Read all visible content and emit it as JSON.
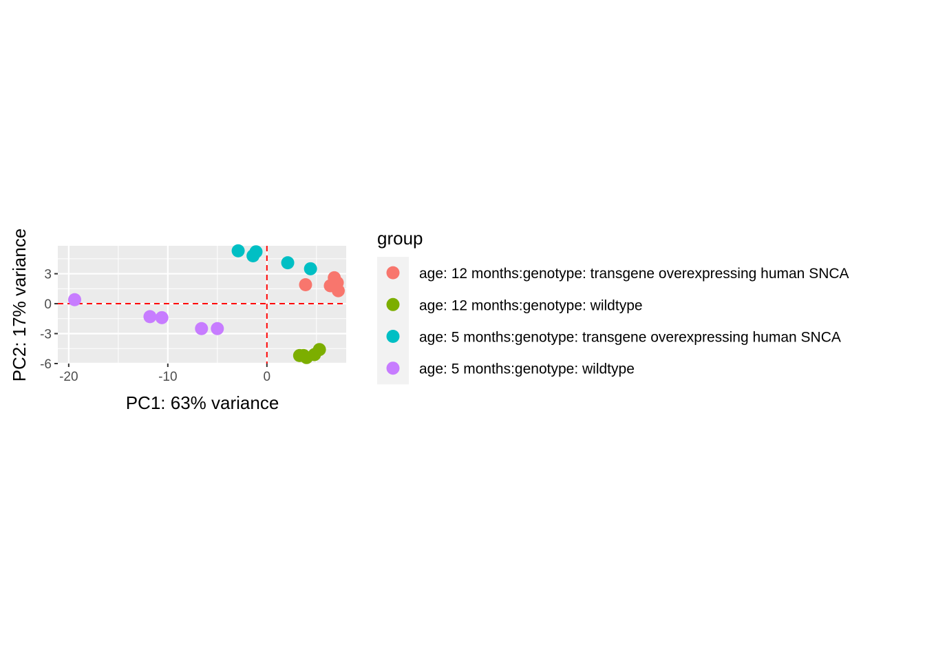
{
  "chart_data": {
    "type": "scatter",
    "xlabel": "PC1: 63% variance",
    "ylabel": "PC2: 17% variance",
    "xlim": [
      -21.1,
      8.0
    ],
    "ylim": [
      -6.0,
      5.8
    ],
    "x_ticks": [
      -20,
      -10,
      0
    ],
    "x_tick_labels": [
      "-20",
      "-10",
      "0"
    ],
    "y_ticks": [
      -6,
      -3,
      0,
      3
    ],
    "y_tick_labels": [
      "-6",
      "-3",
      "0",
      "3"
    ],
    "grid": true,
    "reference_lines": [
      {
        "orientation": "horizontal",
        "value": 0,
        "color": "#ff0000",
        "style": "dashed"
      },
      {
        "orientation": "vertical",
        "value": 0,
        "color": "#ff0000",
        "style": "dashed"
      }
    ],
    "legend": {
      "title": "group",
      "placement": "right"
    },
    "series": [
      {
        "name": "age: 12 months:genotype: transgene overexpressing human SNCA",
        "color": "#F8766D",
        "points": [
          {
            "x": 3.9,
            "y": 1.9
          },
          {
            "x": 6.8,
            "y": 2.6
          },
          {
            "x": 7.1,
            "y": 2.1
          },
          {
            "x": 6.4,
            "y": 1.8
          },
          {
            "x": 7.2,
            "y": 1.3
          }
        ]
      },
      {
        "name": "age: 12 months:genotype: wildtype",
        "color": "#7CAE00",
        "points": [
          {
            "x": 3.3,
            "y": -5.2
          },
          {
            "x": 3.7,
            "y": -5.2
          },
          {
            "x": 4.0,
            "y": -5.4
          },
          {
            "x": 4.8,
            "y": -5.1
          },
          {
            "x": 5.3,
            "y": -4.6
          }
        ]
      },
      {
        "name": "age: 5 months:genotype: transgene overexpressing human SNCA",
        "color": "#00BFC4",
        "points": [
          {
            "x": -2.9,
            "y": 5.3
          },
          {
            "x": -1.1,
            "y": 5.2
          },
          {
            "x": -1.4,
            "y": 4.8
          },
          {
            "x": 2.1,
            "y": 4.1
          },
          {
            "x": 4.4,
            "y": 3.5
          }
        ]
      },
      {
        "name": "age: 5 months:genotype: wildtype",
        "color": "#C77CFF",
        "points": [
          {
            "x": -19.4,
            "y": 0.4
          },
          {
            "x": -11.8,
            "y": -1.3
          },
          {
            "x": -10.6,
            "y": -1.4
          },
          {
            "x": -6.6,
            "y": -2.5
          },
          {
            "x": -5.0,
            "y": -2.5
          }
        ]
      }
    ]
  }
}
